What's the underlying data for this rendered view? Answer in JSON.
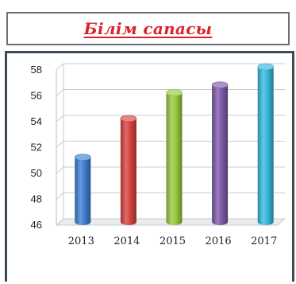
{
  "title": "Білім сапасы",
  "colors": {
    "title": "#d8232c",
    "frame": "#3d4a57",
    "grid": "#c7ccd2"
  },
  "chart_data": {
    "type": "bar",
    "style": "3d-cylinder",
    "title": "",
    "xlabel": "",
    "ylabel": "",
    "categories": [
      "2013",
      "2014",
      "2015",
      "2016",
      "2017"
    ],
    "values": [
      51,
      54,
      56,
      56.6,
      58
    ],
    "bar_colors": [
      "#3f7fcf",
      "#d7433e",
      "#9bc83f",
      "#7f5aa8",
      "#36b8dd"
    ],
    "ylim": [
      46,
      58
    ],
    "yticks": [
      "46",
      "48",
      "50",
      "52",
      "54",
      "56",
      "58"
    ],
    "grid": true,
    "legend": "none"
  }
}
